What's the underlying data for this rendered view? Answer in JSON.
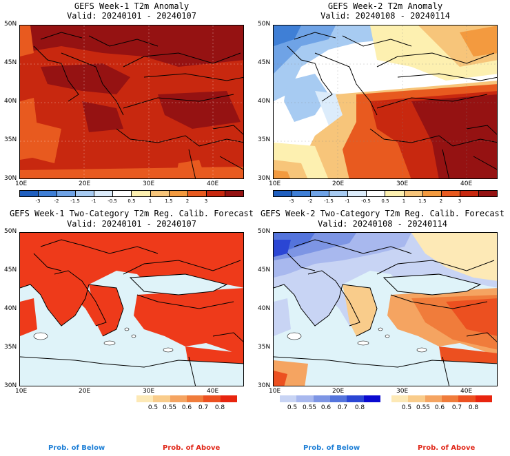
{
  "panels": {
    "tl": {
      "title": "GEFS Week-1 T2m Anomaly",
      "valid": "Valid: 20240101 - 20240107"
    },
    "tr": {
      "title": "GEFS Week-2 T2m Anomaly",
      "valid": "Valid: 20240108 - 20240114"
    },
    "bl": {
      "title": "GEFS Week-1 Two-Category T2m Reg. Calib. Forecast",
      "valid": "Valid: 20240101 - 20240107"
    },
    "br": {
      "title": "GEFS Week-2 Two-Category T2m Reg. Calib. Forecast",
      "valid": "Valid: 20240108 - 20240114"
    }
  },
  "map_axes": {
    "lat_labels": [
      "50N",
      "45N",
      "40N",
      "35N",
      "30N"
    ],
    "lon_labels": [
      "10E",
      "20E",
      "30E",
      "40E"
    ]
  },
  "anomaly_colorbar": {
    "labels": [
      "-3",
      "-2",
      "-1.5",
      "-1",
      "-0.5",
      "0.5",
      "1",
      "1.5",
      "2",
      "3"
    ],
    "colors": [
      "#1f5fbf",
      "#3f7fd6",
      "#6fa3e6",
      "#a7cbf2",
      "#dcecfb",
      "#ffffff",
      "#fdf0b0",
      "#f7c57a",
      "#f39a3f",
      "#e85a1f",
      "#c8280f",
      "#951212"
    ]
  },
  "prob_below_colorbar": {
    "labels": [
      "0.5",
      "0.55",
      "0.6",
      "0.7",
      "0.8"
    ],
    "colors": [
      "#c8d4f4",
      "#a8b8ee",
      "#7d95e4",
      "#5474dc",
      "#2b46d4",
      "#0a0ad0"
    ]
  },
  "prob_above_colorbar": {
    "labels": [
      "0.5",
      "0.55",
      "0.6",
      "0.7",
      "0.8"
    ],
    "colors": [
      "#fde9b6",
      "#f9cc8b",
      "#f5a461",
      "#f07c3b",
      "#ec5020",
      "#e8250f"
    ]
  },
  "prob_legend": {
    "below": "Prob. of Below",
    "above": "Prob. of Above"
  },
  "colors": {
    "below_text": "#1e7fd6",
    "above_text": "#e0281a",
    "sea_prob": "#dff3f9",
    "land_above": "#ee3a1a"
  }
}
